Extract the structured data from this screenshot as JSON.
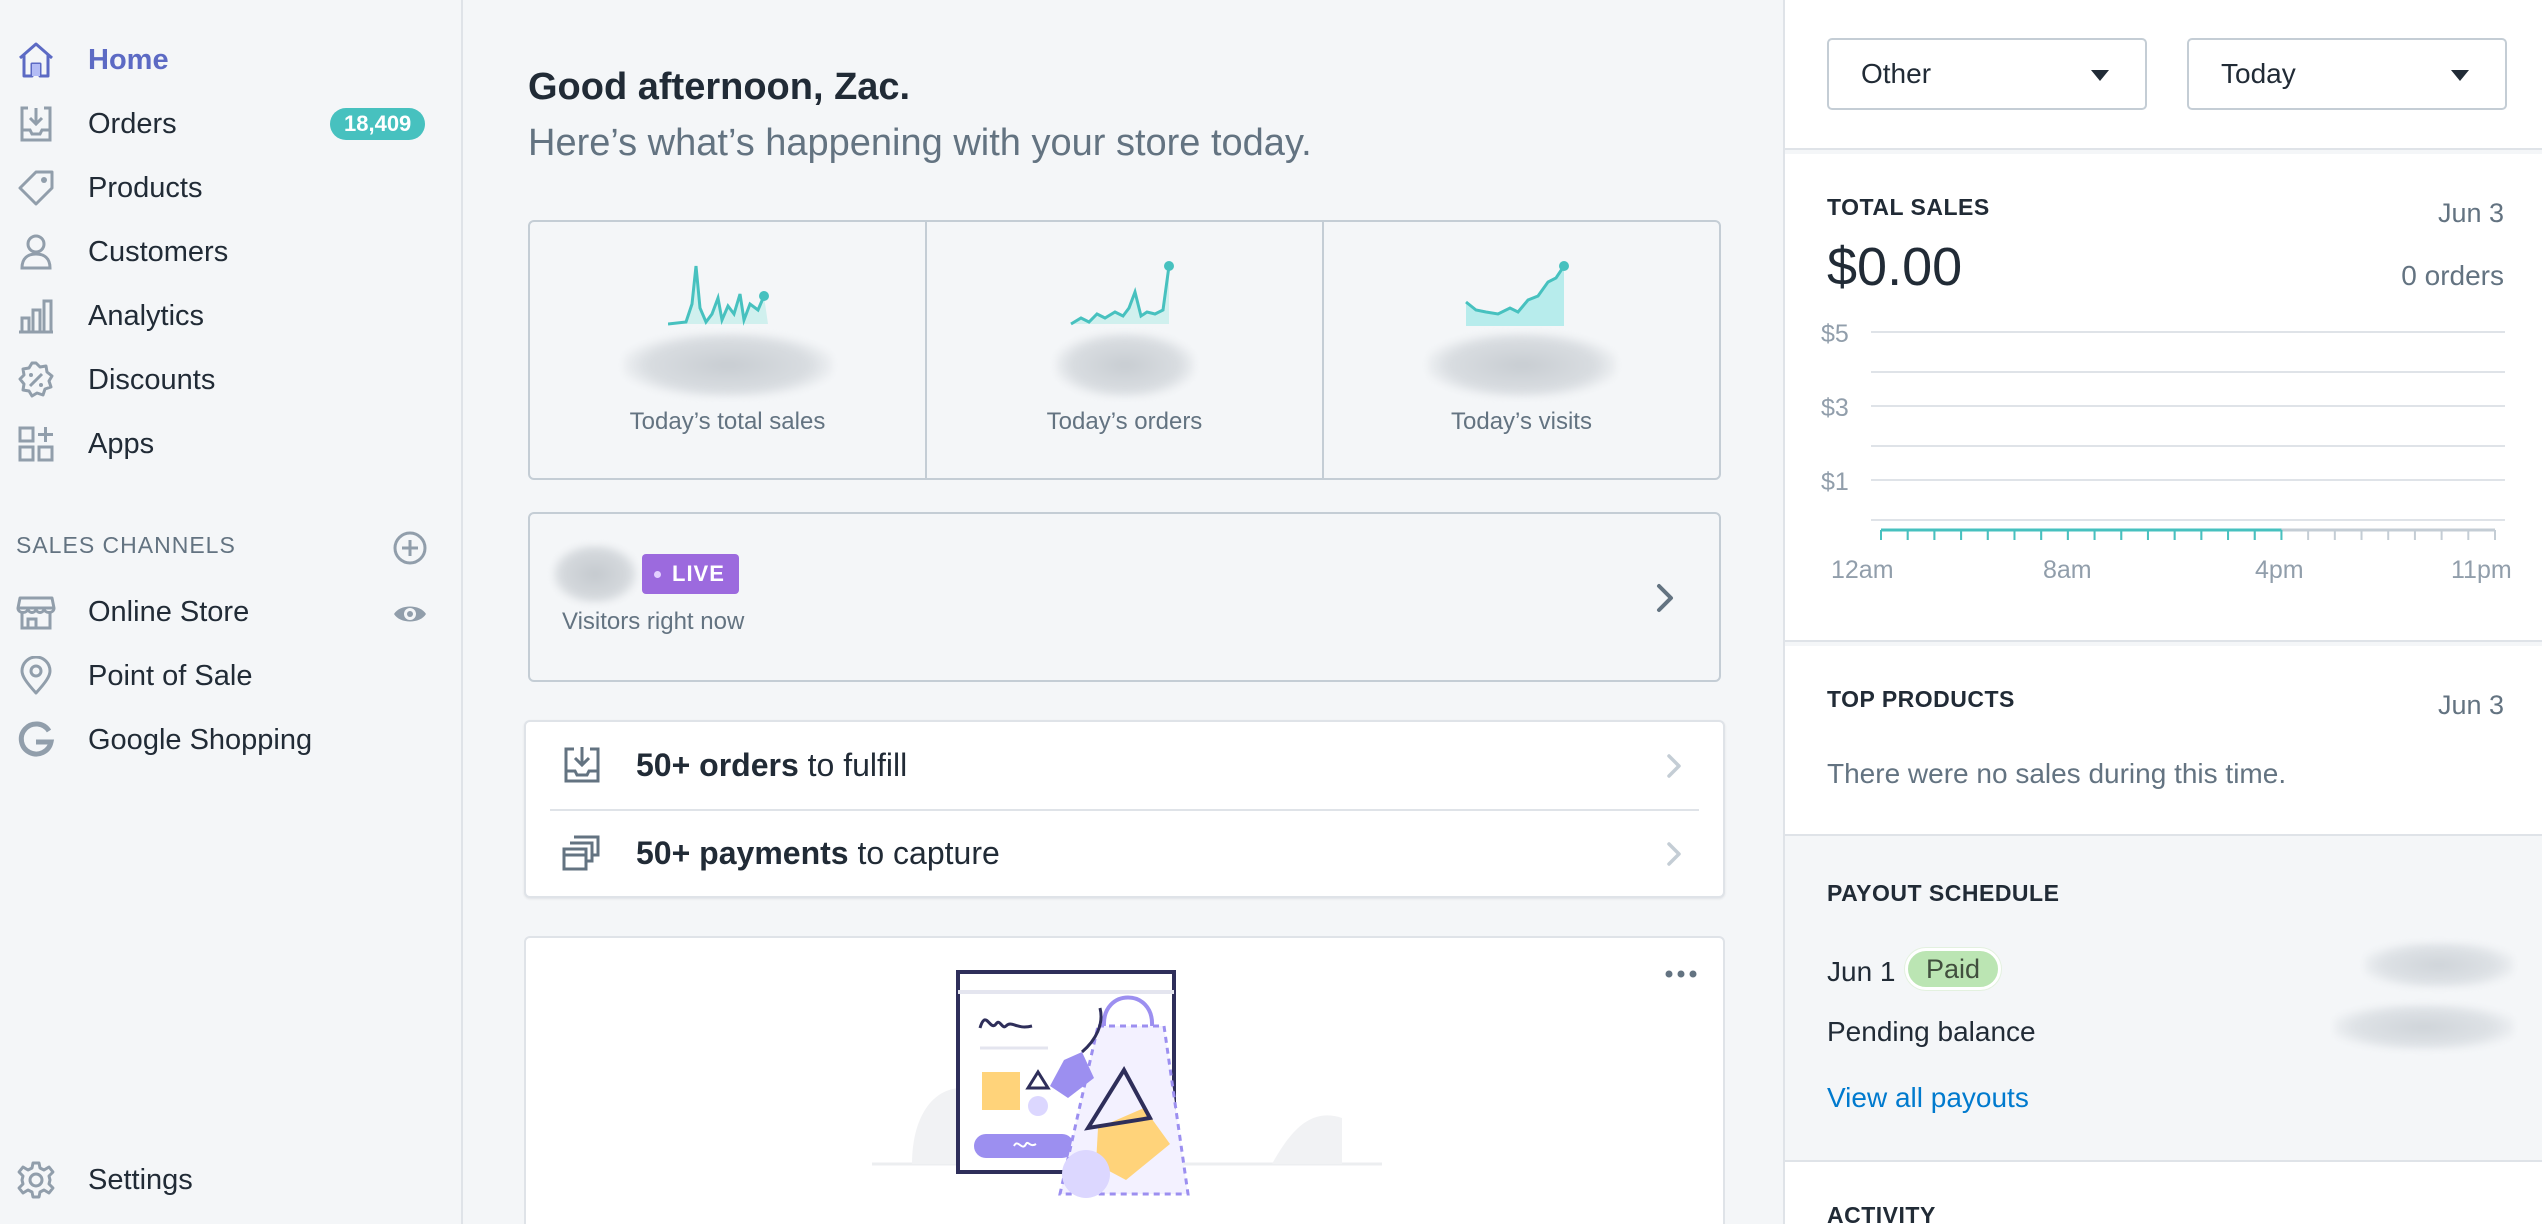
{
  "sidebar": {
    "items": [
      {
        "label": "Home",
        "icon": "home-icon",
        "active": true
      },
      {
        "label": "Orders",
        "icon": "orders-icon",
        "badge": "18,409"
      },
      {
        "label": "Products",
        "icon": "tag-icon"
      },
      {
        "label": "Customers",
        "icon": "person-icon"
      },
      {
        "label": "Analytics",
        "icon": "bar-chart-icon"
      },
      {
        "label": "Discounts",
        "icon": "discount-icon"
      },
      {
        "label": "Apps",
        "icon": "apps-icon"
      }
    ],
    "sales_channels_title": "SALES CHANNELS",
    "channels": [
      {
        "label": "Online Store",
        "icon": "store-icon"
      },
      {
        "label": "Point of Sale",
        "icon": "location-pin-icon"
      },
      {
        "label": "Google Shopping",
        "icon": "google-icon"
      }
    ],
    "settings_label": "Settings"
  },
  "main": {
    "greeting": "Good afternoon, Zac.",
    "subgreeting": "Here’s what’s happening with your store today.",
    "stats": [
      {
        "label": "Today’s total sales"
      },
      {
        "label": "Today’s orders"
      },
      {
        "label": "Today’s visits"
      }
    ],
    "live": {
      "tag": "LIVE",
      "label": "Visitors right now"
    },
    "tasks": [
      {
        "bold": "50+ orders",
        "rest": " to fulfill"
      },
      {
        "bold": "50+ payments",
        "rest": " to capture"
      }
    ]
  },
  "right": {
    "filter_channel": "Other",
    "filter_date": "Today",
    "total_sales": {
      "title": "TOTAL SALES",
      "date": "Jun 3",
      "amount": "$0.00",
      "orders": "0 orders"
    },
    "top_products": {
      "title": "TOP PRODUCTS",
      "date": "Jun 3",
      "empty": "There were no sales during this time."
    },
    "payout": {
      "title": "PAYOUT SCHEDULE",
      "date_label": "Jun 1",
      "status": "Paid",
      "pending_label": "Pending balance",
      "view_all": "View all payouts"
    },
    "activity_title": "ACTIVITY"
  },
  "chart_data": {
    "type": "line",
    "title": "",
    "y_ticks": [
      "$5",
      "$3",
      "$1"
    ],
    "x_ticks": [
      "12am",
      "8am",
      "4pm",
      "11pm"
    ],
    "ylim": [
      0,
      5
    ],
    "series": [
      {
        "values": [
          0,
          0,
          0,
          0,
          0,
          0,
          0,
          0,
          0,
          0,
          0,
          0,
          0,
          0,
          0,
          0
        ],
        "color": "#47c1bf"
      },
      {
        "values": [
          0,
          0,
          0,
          0,
          0,
          0,
          0,
          0,
          0,
          0,
          0,
          0,
          0,
          0,
          0,
          0,
          0,
          0,
          0,
          0,
          0,
          0,
          0,
          0
        ],
        "color": "#c4cdd5"
      }
    ]
  },
  "colors": {
    "accent": "#5c6ac4",
    "teal": "#47c1bf",
    "purple": "#9c6ade",
    "link": "#007ace"
  }
}
